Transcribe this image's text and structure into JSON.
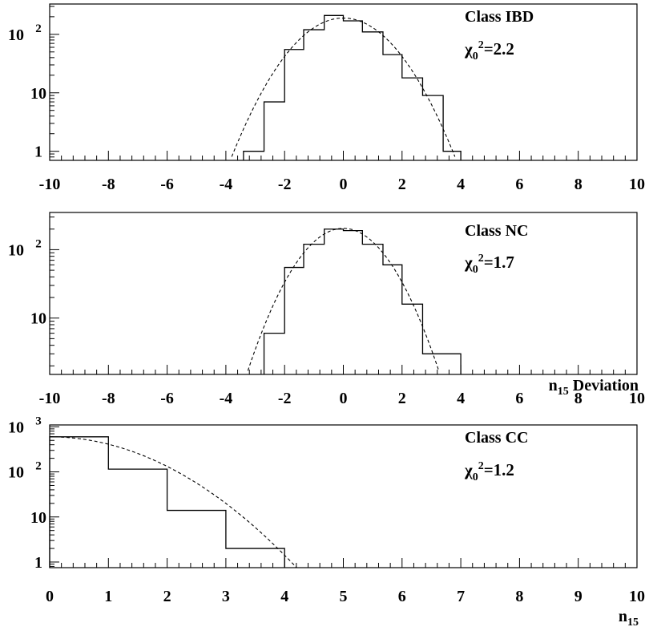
{
  "chart_data": [
    {
      "type": "histogram",
      "annotation": "Class IBD",
      "chi2_label": "χ",
      "chi2_sub": "0",
      "chi2_sup": "2",
      "chi2_value": "=2.2",
      "xlabel": "",
      "xlim": [
        -10,
        10
      ],
      "ylim": [
        0.7,
        330
      ],
      "yscale": "log",
      "x_ticks": [
        "-10",
        "-8",
        "-6",
        "-4",
        "-2",
        "0",
        "2",
        "4",
        "6",
        "8",
        "10"
      ],
      "y_ticks": [
        {
          "base": "1",
          "exp": "",
          "value": 1
        },
        {
          "base": "10",
          "exp": "",
          "value": 10
        },
        {
          "base": "10",
          "exp": "2",
          "value": 100
        }
      ],
      "bin_edges": [
        -3.4,
        -2.7,
        -2.0,
        -1.35,
        -0.65,
        0.0,
        0.65,
        1.35,
        2.0,
        2.7,
        3.4,
        4.0
      ],
      "counts": [
        1,
        7,
        55,
        120,
        210,
        170,
        110,
        45,
        18,
        9,
        1
      ],
      "fit": {
        "amplitude": 190,
        "mean": 0.0,
        "sigma": 1.15
      }
    },
    {
      "type": "histogram",
      "annotation": "Class NC",
      "chi2_label": "χ",
      "chi2_sub": "0",
      "chi2_sup": "2",
      "chi2_value": "=1.7",
      "xlabel_main": "n",
      "xlabel_sub": "15",
      "xlabel_rest": " Deviation",
      "xlim": [
        -10,
        10
      ],
      "ylim": [
        1.5,
        350
      ],
      "yscale": "log",
      "x_ticks": [
        "-10",
        "-8",
        "-6",
        "-4",
        "-2",
        "0",
        "2",
        "4",
        "6",
        "8",
        "10"
      ],
      "y_ticks": [
        {
          "base": "10",
          "exp": "",
          "value": 10
        },
        {
          "base": "10",
          "exp": "2",
          "value": 100
        }
      ],
      "bin_edges": [
        -2.7,
        -2.0,
        -1.35,
        -0.65,
        0.0,
        0.65,
        1.35,
        2.0,
        2.7,
        3.4,
        4.0
      ],
      "counts": [
        6,
        55,
        120,
        200,
        190,
        120,
        60,
        16,
        3,
        3
      ],
      "fit": {
        "amplitude": 205,
        "mean": 0.0,
        "sigma": 1.05
      }
    },
    {
      "type": "histogram",
      "annotation": "Class CC",
      "chi2_label": "χ",
      "chi2_sub": "0",
      "chi2_sup": "2",
      "chi2_value": "=1.2",
      "xlabel_main": "n",
      "xlabel_sub": "15",
      "xlabel_rest": "",
      "xlim": [
        0,
        10
      ],
      "ylim": [
        0.75,
        1100
      ],
      "yscale": "log",
      "x_ticks": [
        "0",
        "1",
        "2",
        "3",
        "4",
        "5",
        "6",
        "7",
        "8",
        "9",
        "10"
      ],
      "y_ticks": [
        {
          "base": "1",
          "exp": "",
          "value": 1
        },
        {
          "base": "10",
          "exp": "",
          "value": 10
        },
        {
          "base": "10",
          "exp": "2",
          "value": 100
        },
        {
          "base": "10",
          "exp": "3",
          "value": 1000
        }
      ],
      "bin_edges": [
        0,
        1,
        2,
        3,
        4
      ],
      "counts": [
        600,
        115,
        14,
        2
      ],
      "fit": {
        "amplitude": 600,
        "mean": 0.0,
        "sigma": 1.15
      }
    }
  ]
}
